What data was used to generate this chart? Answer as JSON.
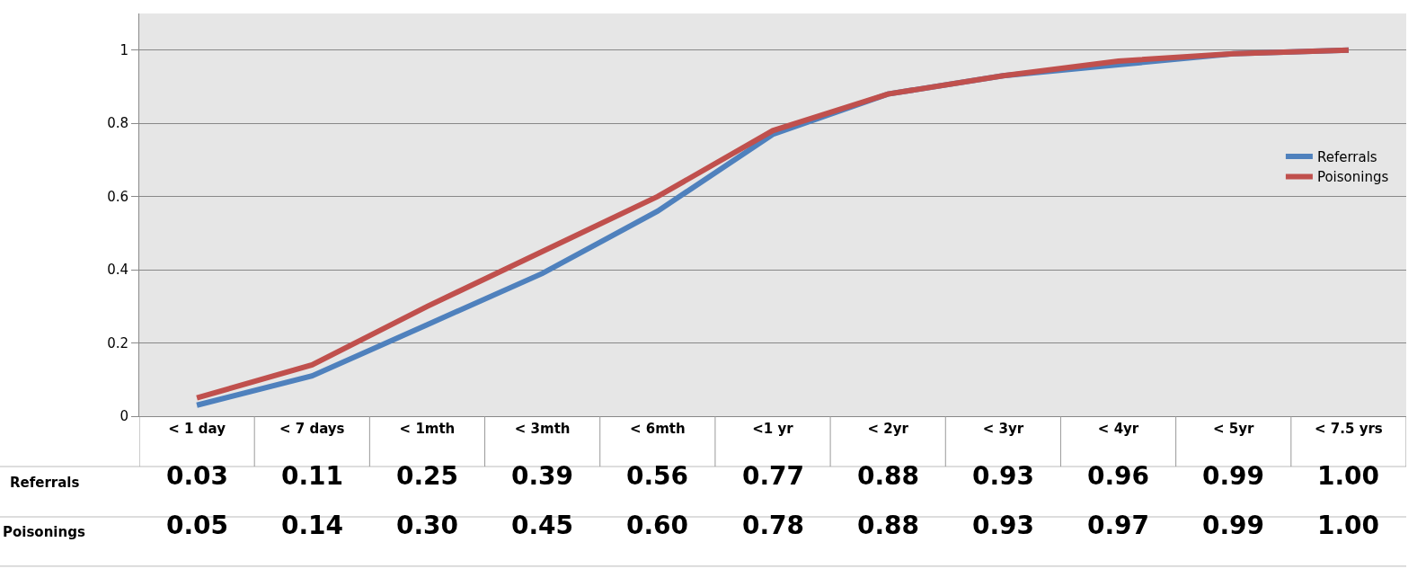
{
  "chart_data": {
    "type": "line",
    "categories": [
      "< 1 day",
      "< 7 days",
      "< 1mth",
      "< 3mth",
      "< 6mth",
      "<1 yr",
      "< 2yr",
      "< 3yr",
      "< 4yr",
      "< 5yr",
      "< 7.5 yrs"
    ],
    "series": [
      {
        "name": "Referrals",
        "color": "#4f81bd",
        "values": [
          0.03,
          0.11,
          0.25,
          0.39,
          0.56,
          0.77,
          0.88,
          0.93,
          0.96,
          0.99,
          1.0
        ],
        "value_labels": [
          "0.03",
          "0.11",
          "0.25",
          "0.39",
          "0.56",
          "0.77",
          "0.88",
          "0.93",
          "0.96",
          "0.99",
          "1.00"
        ]
      },
      {
        "name": "Poisonings",
        "color": "#c0504d",
        "values": [
          0.05,
          0.14,
          0.3,
          0.45,
          0.6,
          0.78,
          0.88,
          0.93,
          0.97,
          0.99,
          1.0
        ],
        "value_labels": [
          "0.05",
          "0.14",
          "0.30",
          "0.45",
          "0.60",
          "0.78",
          "0.88",
          "0.93",
          "0.97",
          "0.99",
          "1.00"
        ]
      }
    ],
    "ylim": [
      0,
      1.1
    ],
    "yticks": [
      0,
      0.2,
      0.4,
      0.6,
      0.8,
      1
    ],
    "grid": "y",
    "legend": "right",
    "marker": "none",
    "line_style": "solid"
  }
}
